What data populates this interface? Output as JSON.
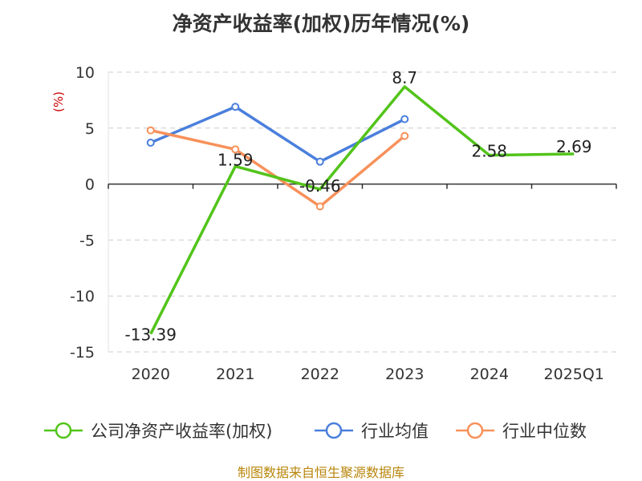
{
  "chart_data": {
    "type": "line",
    "title": "净资产收益率(加权)历年情况(%)",
    "ylabel": "(%)",
    "categories": [
      "2020",
      "2021",
      "2022",
      "2023",
      "2024",
      "2025Q1"
    ],
    "ylim": [
      -15,
      10
    ],
    "yticks": [
      10,
      5,
      0,
      -5,
      -10,
      -15
    ],
    "grid": true,
    "legend_position": "bottom",
    "series": [
      {
        "name": "公司净资产收益率(加权)",
        "color": "#52c41a",
        "values": [
          -13.39,
          1.59,
          -0.46,
          8.7,
          2.58,
          2.69
        ],
        "labels": [
          "-13.39",
          "1.59",
          "-0.46",
          "8.7",
          "2.58",
          "2.69"
        ]
      },
      {
        "name": "行业均值",
        "color": "#4a7fdc",
        "values": [
          3.7,
          6.9,
          2.0,
          5.8,
          null,
          null
        ]
      },
      {
        "name": "行业中位数",
        "color": "#f7915a",
        "values": [
          4.8,
          3.1,
          -2.0,
          4.3,
          null,
          null
        ]
      }
    ],
    "ylabel_color": "#cc0000"
  },
  "source": "制图数据来自恒生聚源数据库"
}
